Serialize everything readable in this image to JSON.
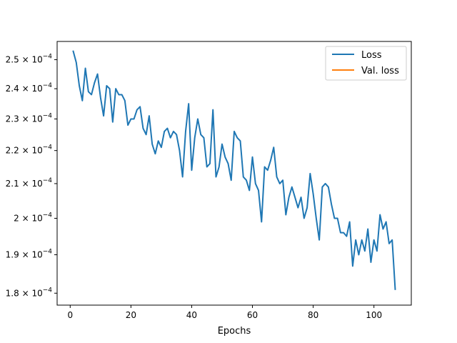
{
  "chart_data": {
    "type": "line",
    "title": "",
    "xlabel": "Epochs",
    "ylabel": "",
    "xlim": [
      -4.3,
      112.3
    ],
    "ylim": [
      0.000177,
      0.0002565
    ],
    "y_scale": "log",
    "grid": false,
    "legend_position": "top-right",
    "xticks": [
      0,
      20,
      40,
      60,
      80,
      100
    ],
    "xtick_labels": [
      "0",
      "20",
      "40",
      "60",
      "80",
      "100"
    ],
    "yticks": [
      0.00018,
      0.00019,
      0.0002,
      0.00021,
      0.00022,
      0.00023,
      0.00024,
      0.00025
    ],
    "ytick_labels": [
      {
        "mantissa": "1.8",
        "exponent": "−4"
      },
      {
        "mantissa": "1.9",
        "exponent": "−4"
      },
      {
        "mantissa": "2",
        "exponent": "−4"
      },
      {
        "mantissa": "2.1",
        "exponent": "−4"
      },
      {
        "mantissa": "2.2",
        "exponent": "−4"
      },
      {
        "mantissa": "2.3",
        "exponent": "−4"
      },
      {
        "mantissa": "2.4",
        "exponent": "−4"
      },
      {
        "mantissa": "2.5",
        "exponent": "−4"
      }
    ],
    "series": [
      {
        "name": "Loss",
        "color": "#1f77b4",
        "x": [
          1,
          2,
          3,
          4,
          5,
          6,
          7,
          8,
          9,
          10,
          11,
          12,
          13,
          14,
          15,
          16,
          17,
          18,
          19,
          20,
          21,
          22,
          23,
          24,
          25,
          26,
          27,
          28,
          29,
          30,
          31,
          32,
          33,
          34,
          35,
          36,
          37,
          38,
          39,
          40,
          41,
          42,
          43,
          44,
          45,
          46,
          47,
          48,
          49,
          50,
          51,
          52,
          53,
          54,
          55,
          56,
          57,
          58,
          59,
          60,
          61,
          62,
          63,
          64,
          65,
          66,
          67,
          68,
          69,
          70,
          71,
          72,
          73,
          74,
          75,
          76,
          77,
          78,
          79,
          80,
          81,
          82,
          83,
          84,
          85,
          86,
          87,
          88,
          89,
          90,
          91,
          92,
          93,
          94,
          95,
          96,
          97,
          98,
          99,
          100,
          101,
          102,
          103,
          104,
          105,
          106,
          107
        ],
        "values": [
          0.000253,
          0.000249,
          0.000241,
          0.000236,
          0.000247,
          0.000239,
          0.000238,
          0.000242,
          0.000245,
          0.000237,
          0.000231,
          0.000241,
          0.00024,
          0.000229,
          0.00024,
          0.000238,
          0.000238,
          0.000236,
          0.000228,
          0.00023,
          0.00023,
          0.000233,
          0.000234,
          0.000227,
          0.000225,
          0.000231,
          0.000222,
          0.000219,
          0.000223,
          0.000221,
          0.000226,
          0.000227,
          0.000224,
          0.000226,
          0.000225,
          0.00022,
          0.000212,
          0.000226,
          0.000235,
          0.000214,
          0.000224,
          0.00023,
          0.000225,
          0.000224,
          0.000215,
          0.000216,
          0.000233,
          0.000212,
          0.000215,
          0.000222,
          0.000218,
          0.000216,
          0.000211,
          0.000226,
          0.000224,
          0.000223,
          0.000212,
          0.000211,
          0.000208,
          0.000218,
          0.00021,
          0.000208,
          0.000199,
          0.000215,
          0.000214,
          0.000217,
          0.000221,
          0.000212,
          0.00021,
          0.000211,
          0.000201,
          0.000206,
          0.000209,
          0.000206,
          0.000203,
          0.000206,
          0.0002,
          0.000203,
          0.000213,
          0.000207,
          0.0002,
          0.000194,
          0.000209,
          0.00021,
          0.000209,
          0.000204,
          0.0002,
          0.0002,
          0.000196,
          0.000196,
          0.000195,
          0.000199,
          0.000187,
          0.000194,
          0.00019,
          0.000194,
          0.000191,
          0.000197,
          0.000188,
          0.000194,
          0.000191,
          0.000201,
          0.000197,
          0.000199,
          0.000193,
          0.000194,
          0.000181
        ]
      },
      {
        "name": "Val. loss",
        "color": "#ff7f0e",
        "x": [],
        "values": []
      }
    ]
  }
}
